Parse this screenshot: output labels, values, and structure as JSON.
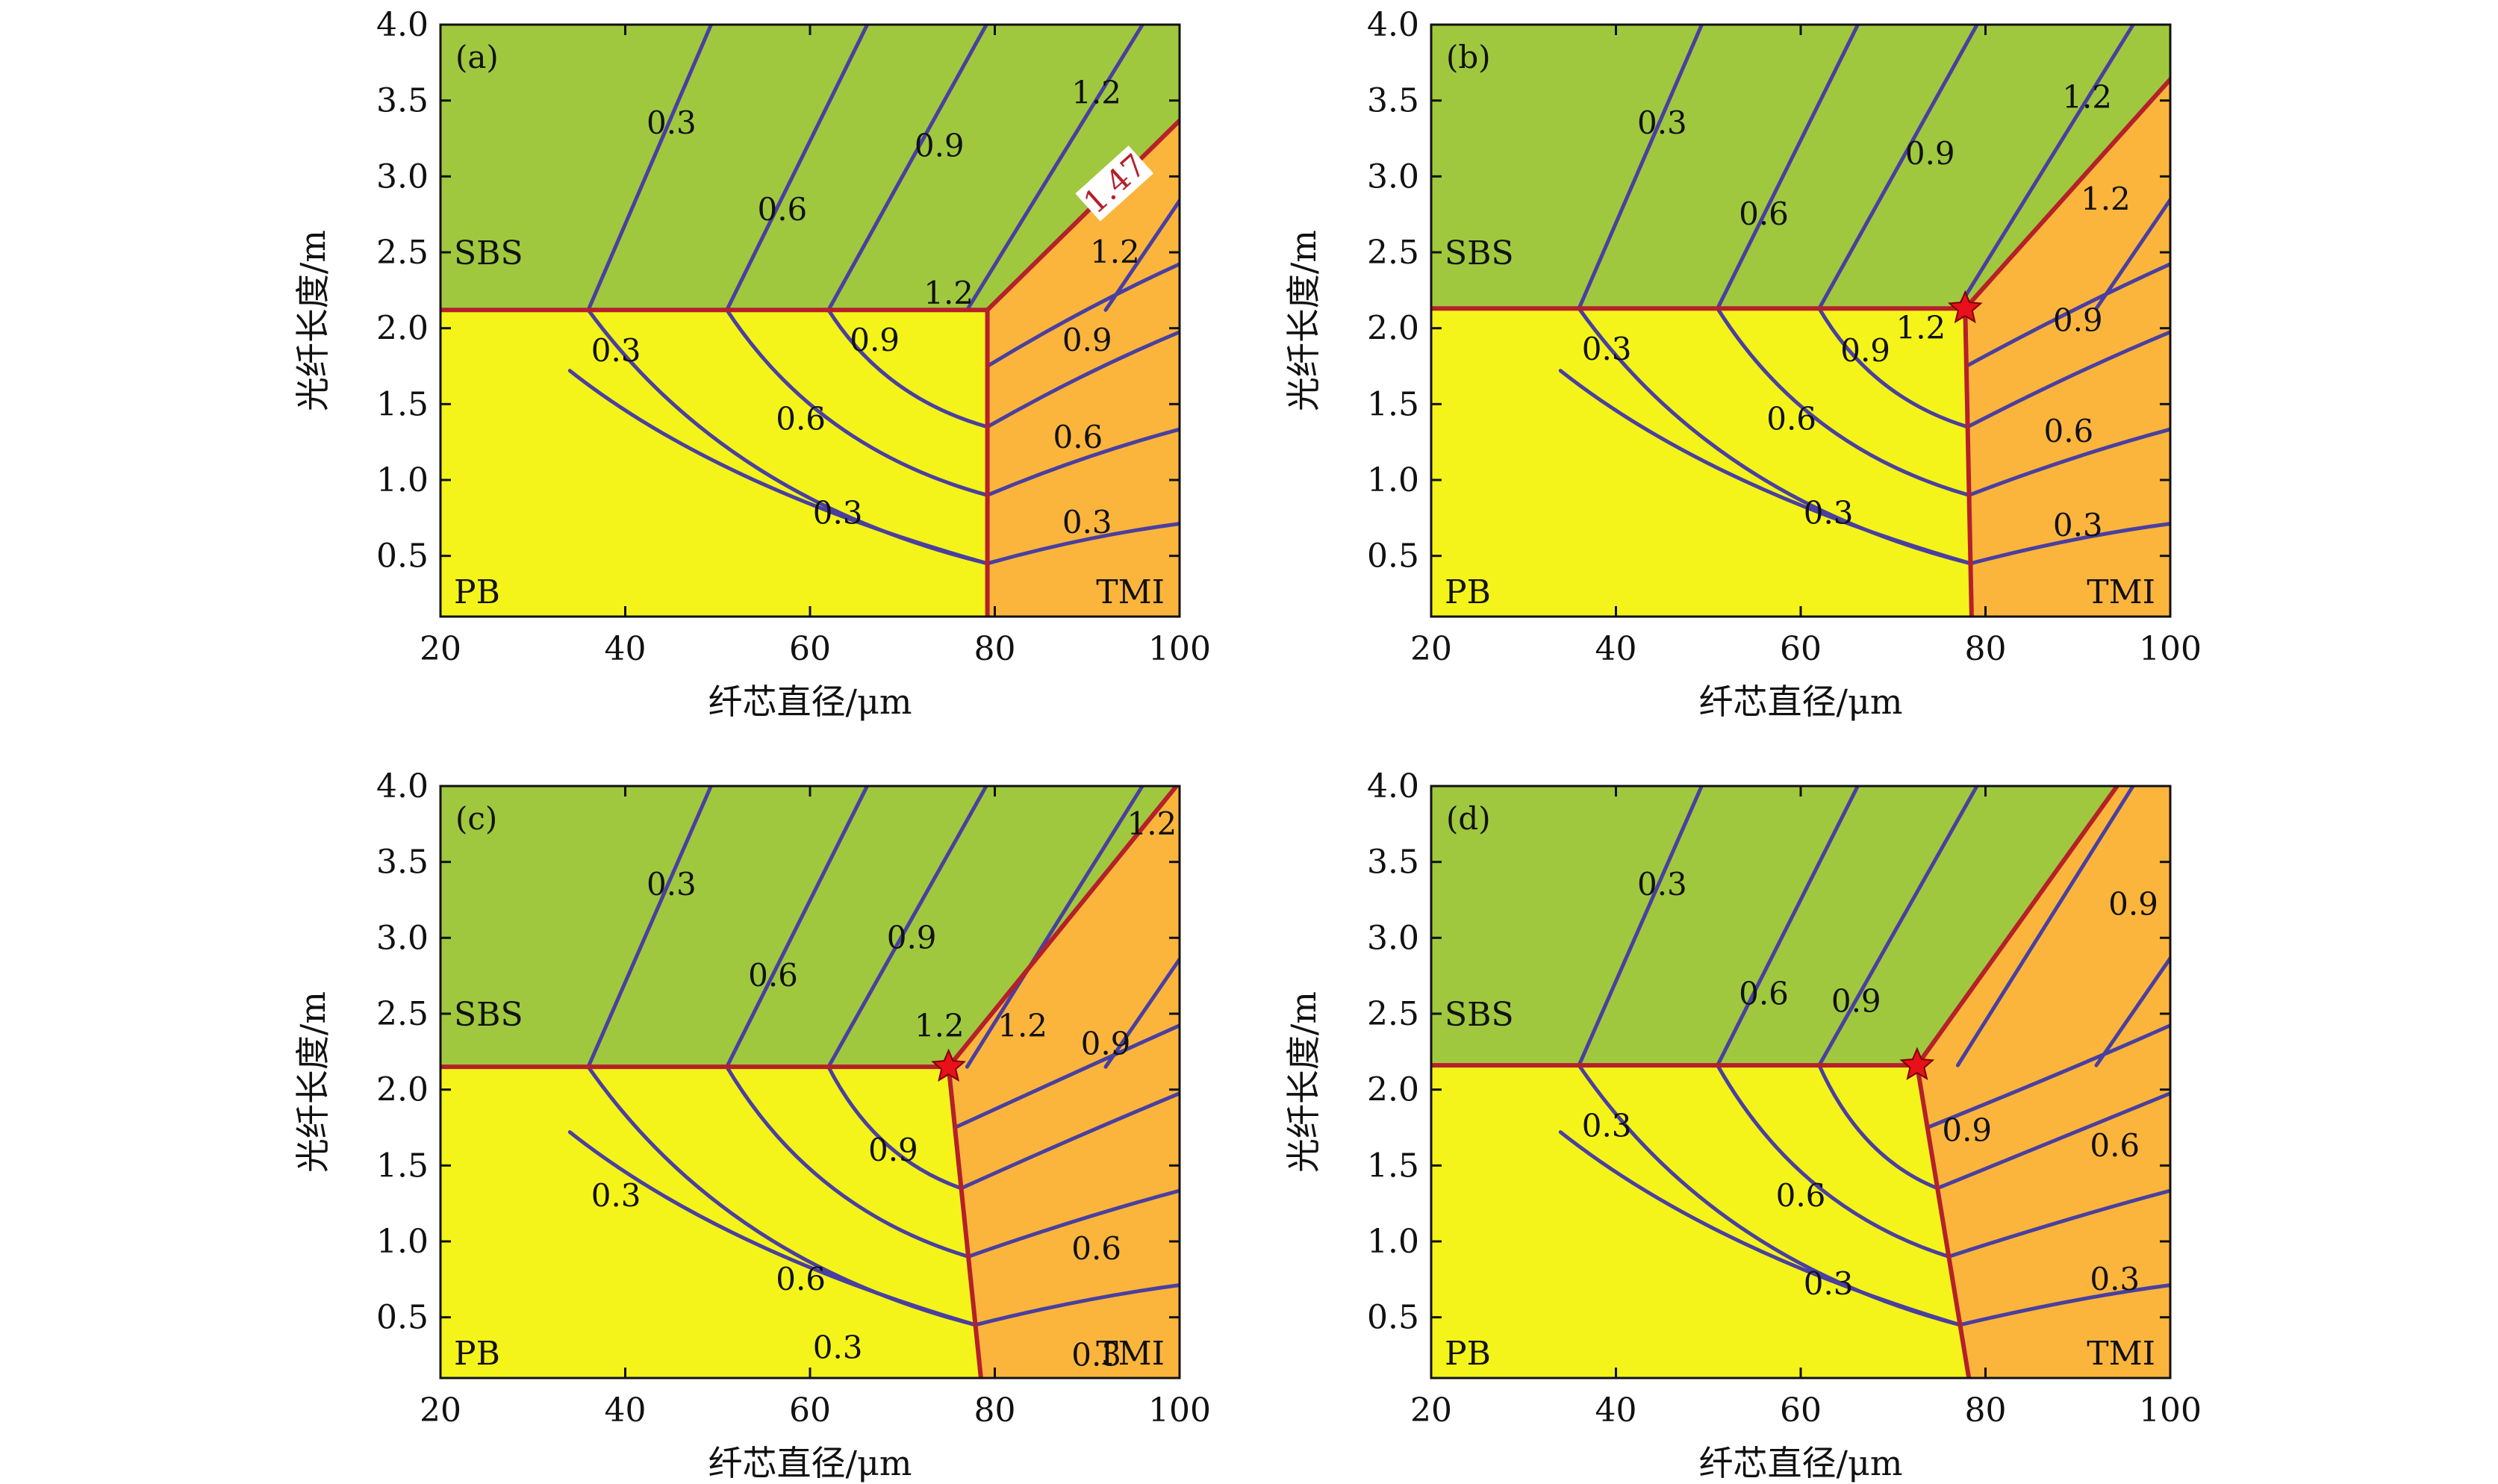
{
  "chart_data": [
    {
      "type": "contour",
      "panel": "(a)",
      "xlabel": "纤芯直径/μm",
      "ylabel": "光纤长度/m",
      "xlim": [
        20,
        100
      ],
      "ylim": [
        0.1,
        4.0
      ],
      "xticks": [
        "20",
        "40",
        "60",
        "80",
        "100"
      ],
      "yticks": [
        "0.5",
        "1.0",
        "1.5",
        "2.0",
        "2.5",
        "3.0",
        "3.5",
        "4.0"
      ],
      "colors": {
        "SBS": "#9fc83f",
        "PB": "#f4f41a",
        "TMI": "#fbb53c",
        "boundary": "#b5202a",
        "contour": "#4a3fa0",
        "star": "#e8101a"
      },
      "region_labels": {
        "SBS": "SBS",
        "PB": "PB",
        "TMI": "TMI"
      },
      "boundary": {
        "y_sbs": 2.12,
        "x_pb_bottom": 79.2,
        "x_pb_top": 79.2,
        "upper_slope": 0.06
      },
      "star": null,
      "contour_labels": [
        {
          "text": "0.3",
          "x": 45,
          "y": 3.35
        },
        {
          "text": "0.6",
          "x": 57,
          "y": 2.78
        },
        {
          "text": "0.9",
          "x": 74,
          "y": 3.2
        },
        {
          "text": "1.2",
          "x": 91,
          "y": 3.55
        },
        {
          "text": "1.47",
          "x": 93,
          "y": 2.95,
          "special": true
        },
        {
          "text": "1.2",
          "x": 75,
          "y": 2.23
        },
        {
          "text": "1.2",
          "x": 93,
          "y": 2.5
        },
        {
          "text": "0.9",
          "x": 67,
          "y": 1.92
        },
        {
          "text": "0.9",
          "x": 90,
          "y": 1.92
        },
        {
          "text": "0.3",
          "x": 39,
          "y": 1.85
        },
        {
          "text": "0.6",
          "x": 59,
          "y": 1.4
        },
        {
          "text": "0.6",
          "x": 89,
          "y": 1.28
        },
        {
          "text": "0.3",
          "x": 63,
          "y": 0.78
        },
        {
          "text": "0.3",
          "x": 90,
          "y": 0.72
        }
      ]
    },
    {
      "type": "contour",
      "panel": "(b)",
      "xlabel": "纤芯直径/μm",
      "ylabel": "光纤长度/m",
      "xlim": [
        20,
        100
      ],
      "ylim": [
        0.1,
        4.0
      ],
      "xticks": [
        "20",
        "40",
        "60",
        "80",
        "100"
      ],
      "yticks": [
        "0.5",
        "1.0",
        "1.5",
        "2.0",
        "2.5",
        "3.0",
        "3.5",
        "4.0"
      ],
      "colors": {
        "SBS": "#9fc83f",
        "PB": "#f4f41a",
        "TMI": "#fbb53c",
        "boundary": "#b5202a",
        "contour": "#4a3fa0",
        "star": "#e8101a"
      },
      "region_labels": {
        "SBS": "SBS",
        "PB": "PB",
        "TMI": "TMI"
      },
      "boundary": {
        "y_sbs": 2.13,
        "x_pb_bottom": 78.5,
        "x_pb_top": 77.8,
        "upper_slope": 0.068
      },
      "star": {
        "x": 77.8,
        "y": 2.13
      },
      "contour_labels": [
        {
          "text": "0.3",
          "x": 45,
          "y": 3.35
        },
        {
          "text": "0.6",
          "x": 56,
          "y": 2.75
        },
        {
          "text": "0.9",
          "x": 74,
          "y": 3.15
        },
        {
          "text": "1.2",
          "x": 91,
          "y": 3.52
        },
        {
          "text": "1.2",
          "x": 93,
          "y": 2.85
        },
        {
          "text": "1.2",
          "x": 73,
          "y": 2.0
        },
        {
          "text": "0.9",
          "x": 67,
          "y": 1.85
        },
        {
          "text": "0.9",
          "x": 90,
          "y": 2.05
        },
        {
          "text": "0.3",
          "x": 39,
          "y": 1.86
        },
        {
          "text": "0.6",
          "x": 59,
          "y": 1.4
        },
        {
          "text": "0.6",
          "x": 89,
          "y": 1.32
        },
        {
          "text": "0.3",
          "x": 63,
          "y": 0.78
        },
        {
          "text": "0.3",
          "x": 90,
          "y": 0.7
        }
      ]
    },
    {
      "type": "contour",
      "panel": "(c)",
      "xlabel": "纤芯直径/μm",
      "ylabel": "光纤长度/m",
      "xlim": [
        20,
        100
      ],
      "ylim": [
        0.1,
        4.0
      ],
      "xticks": [
        "20",
        "40",
        "60",
        "80",
        "100"
      ],
      "yticks": [
        "0.5",
        "1.0",
        "1.5",
        "2.0",
        "2.5",
        "3.0",
        "3.5",
        "4.0"
      ],
      "colors": {
        "SBS": "#9fc83f",
        "PB": "#f4f41a",
        "TMI": "#fbb53c",
        "boundary": "#b5202a",
        "contour": "#4a3fa0",
        "star": "#e8101a"
      },
      "region_labels": {
        "SBS": "SBS",
        "PB": "PB",
        "TMI": "TMI"
      },
      "boundary": {
        "y_sbs": 2.15,
        "x_pb_bottom": 78.5,
        "x_pb_top": 75.0,
        "upper_slope": 0.075
      },
      "star": {
        "x": 75.0,
        "y": 2.15
      },
      "contour_labels": [
        {
          "text": "0.3",
          "x": 45,
          "y": 3.35
        },
        {
          "text": "0.6",
          "x": 56,
          "y": 2.75
        },
        {
          "text": "0.9",
          "x": 71,
          "y": 3.0
        },
        {
          "text": "1.2",
          "x": 97,
          "y": 3.75
        },
        {
          "text": "1.2",
          "x": 74,
          "y": 2.42
        },
        {
          "text": "1.2",
          "x": 83,
          "y": 2.42
        },
        {
          "text": "0.9",
          "x": 92,
          "y": 2.3
        },
        {
          "text": "0.9",
          "x": 69,
          "y": 1.6
        },
        {
          "text": "0.3",
          "x": 39,
          "y": 1.3
        },
        {
          "text": "0.6",
          "x": 59,
          "y": 0.75
        },
        {
          "text": "0.6",
          "x": 91,
          "y": 0.95
        },
        {
          "text": "0.3",
          "x": 63,
          "y": 0.3
        },
        {
          "text": "0.3",
          "x": 91,
          "y": 0.25
        }
      ]
    },
    {
      "type": "contour",
      "panel": "(d)",
      "xlabel": "纤芯直径/μm",
      "ylabel": "光纤长度/m",
      "xlim": [
        20,
        100
      ],
      "ylim": [
        0.1,
        4.0
      ],
      "xticks": [
        "20",
        "40",
        "60",
        "80",
        "100"
      ],
      "yticks": [
        "0.5",
        "1.0",
        "1.5",
        "2.0",
        "2.5",
        "3.0",
        "3.5",
        "4.0"
      ],
      "colors": {
        "SBS": "#9fc83f",
        "PB": "#f4f41a",
        "TMI": "#fbb53c",
        "boundary": "#b5202a",
        "contour": "#4a3fa0",
        "star": "#e8101a"
      },
      "region_labels": {
        "SBS": "SBS",
        "PB": "PB",
        "TMI": "TMI"
      },
      "boundary": {
        "y_sbs": 2.16,
        "x_pb_bottom": 78.2,
        "x_pb_top": 72.6,
        "upper_slope": 0.085
      },
      "star": {
        "x": 72.6,
        "y": 2.16
      },
      "contour_labels": [
        {
          "text": "0.3",
          "x": 45,
          "y": 3.35
        },
        {
          "text": "0.6",
          "x": 56,
          "y": 2.63
        },
        {
          "text": "0.9",
          "x": 66,
          "y": 2.58
        },
        {
          "text": "0.9",
          "x": 96,
          "y": 3.22
        },
        {
          "text": "0.9",
          "x": 78,
          "y": 1.73
        },
        {
          "text": "0.6",
          "x": 94,
          "y": 1.63
        },
        {
          "text": "0.3",
          "x": 39,
          "y": 1.76
        },
        {
          "text": "0.6",
          "x": 60,
          "y": 1.3
        },
        {
          "text": "0.3",
          "x": 63,
          "y": 0.72
        },
        {
          "text": "0.3",
          "x": 94,
          "y": 0.75
        }
      ]
    }
  ]
}
